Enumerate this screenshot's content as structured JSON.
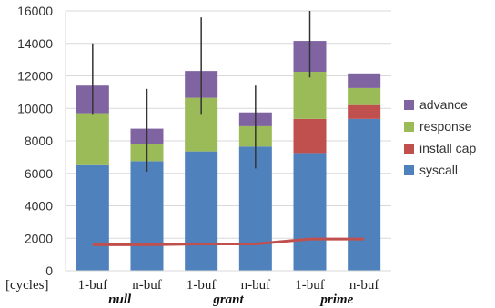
{
  "chart_data": {
    "type": "bar",
    "stacked": true,
    "categories": [
      "1-buf",
      "n-buf",
      "1-buf",
      "n-buf",
      "1-buf",
      "n-buf"
    ],
    "groups": [
      {
        "label": "null",
        "categories": [
          0,
          1
        ]
      },
      {
        "label": "grant",
        "categories": [
          2,
          3
        ]
      },
      {
        "label": "prime",
        "categories": [
          4,
          5
        ]
      }
    ],
    "series": [
      {
        "name": "syscall",
        "color": "#4f81bd",
        "values": [
          6500,
          6750,
          7350,
          7650,
          7250,
          9350
        ]
      },
      {
        "name": "install cap",
        "color": "#c0504d",
        "values": [
          0,
          0,
          0,
          0,
          2100,
          850
        ]
      },
      {
        "name": "response",
        "color": "#9bbb59",
        "values": [
          3200,
          1050,
          3300,
          1250,
          2900,
          1050
        ]
      },
      {
        "name": "advance",
        "color": "#8064a2",
        "values": [
          1700,
          950,
          1650,
          850,
          1900,
          900
        ]
      }
    ],
    "error_bars": [
      {
        "low": 9600,
        "high": 14000
      },
      {
        "low": 6100,
        "high": 11200
      },
      {
        "low": 9600,
        "high": 15600
      },
      {
        "low": 6300,
        "high": 11400
      },
      {
        "low": 11900,
        "high": 16000
      },
      null
    ],
    "baseline_line": {
      "color": "#c0504d",
      "values": [
        1600,
        1600,
        1650,
        1650,
        1950,
        1950
      ]
    },
    "yticks": [
      "0",
      "2000",
      "4000",
      "6000",
      "8000",
      "10000",
      "12000",
      "14000",
      "16000"
    ],
    "ylim": [
      0,
      16000
    ],
    "ylabel": "[cycles]",
    "grid": true,
    "legend_position": "right",
    "legend_order": [
      "advance",
      "response",
      "install cap",
      "syscall"
    ]
  }
}
